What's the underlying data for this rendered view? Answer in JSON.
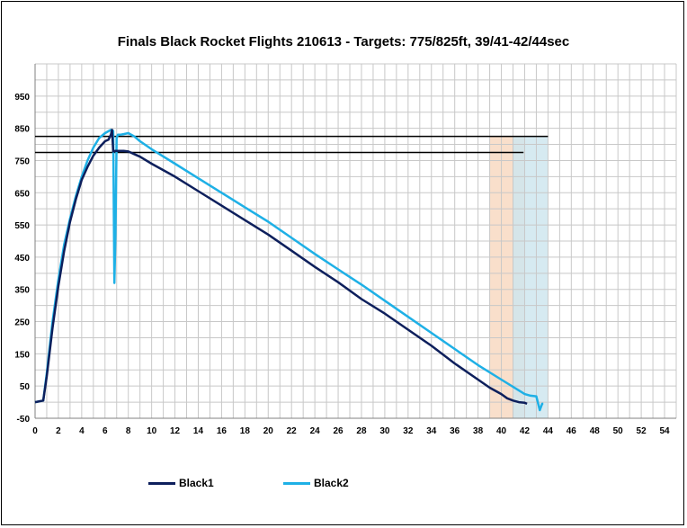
{
  "chart_data": {
    "type": "line",
    "title": "Finals Black Rocket Flights 210613 - Targets: 775/825ft, 39/41-42/44sec",
    "xlabel": "",
    "ylabel": "",
    "xlim": [
      0,
      55
    ],
    "ylim": [
      -50,
      1050
    ],
    "x_ticks": [
      0,
      2,
      4,
      6,
      8,
      10,
      12,
      14,
      16,
      18,
      20,
      22,
      24,
      26,
      28,
      30,
      32,
      34,
      36,
      38,
      40,
      42,
      44,
      46,
      48,
      50,
      52,
      54
    ],
    "y_ticks": [
      -50,
      50,
      150,
      250,
      350,
      450,
      550,
      650,
      750,
      850,
      950
    ],
    "grid": true,
    "legend_position": "bottom-left",
    "target_lines": [
      {
        "y": 825,
        "x_end": 44,
        "color": "#000000"
      },
      {
        "y": 775,
        "x_end": 41.9,
        "color": "#000000"
      }
    ],
    "target_bands": [
      {
        "x_start": 39,
        "x_end": 42,
        "color": "#f8d9c2"
      },
      {
        "x_start": 41,
        "x_end": 44,
        "color": "#cfe6ee"
      }
    ],
    "series": [
      {
        "name": "Black1",
        "color": "#0d1f5c",
        "x": [
          0,
          0.7,
          1,
          1.5,
          2,
          2.5,
          3,
          3.5,
          4,
          4.5,
          5,
          5.5,
          6,
          6.3,
          6.5,
          6.6,
          6.7,
          6.9,
          7.2,
          7.6,
          8,
          8.5,
          9,
          10,
          12,
          14,
          16,
          18,
          20,
          22,
          24,
          26,
          28,
          30,
          32,
          34,
          36,
          38,
          39,
          40,
          40.5,
          41,
          41.5,
          42,
          42.2
        ],
        "values": [
          0,
          5,
          80,
          230,
          360,
          470,
          560,
          630,
          690,
          730,
          765,
          790,
          810,
          815,
          830,
          845,
          778,
          780,
          780,
          780,
          778,
          770,
          762,
          740,
          700,
          655,
          610,
          565,
          520,
          470,
          420,
          372,
          320,
          275,
          225,
          175,
          120,
          70,
          45,
          25,
          12,
          5,
          0,
          -2,
          -5
        ]
      },
      {
        "name": "Black2",
        "color": "#1eb0e6",
        "x": [
          0,
          0.7,
          1,
          1.5,
          2,
          2.5,
          3,
          3.5,
          4,
          4.5,
          5,
          5.5,
          6,
          6.5,
          6.7,
          6.8,
          6.9,
          7,
          7.1,
          7.3,
          7.6,
          8,
          8.5,
          9,
          10,
          12,
          14,
          16,
          18,
          20,
          22,
          24,
          26,
          28,
          30,
          32,
          34,
          36,
          38,
          40,
          42,
          42.5,
          43,
          43.3,
          43.5,
          43.6
        ],
        "values": [
          0,
          5,
          90,
          250,
          380,
          490,
          570,
          640,
          700,
          750,
          790,
          820,
          835,
          845,
          842,
          370,
          520,
          820,
          830,
          830,
          832,
          835,
          825,
          810,
          785,
          740,
          695,
          650,
          605,
          560,
          510,
          460,
          412,
          365,
          315,
          265,
          215,
          165,
          115,
          70,
          25,
          20,
          18,
          -25,
          -5,
          -5
        ]
      }
    ]
  }
}
